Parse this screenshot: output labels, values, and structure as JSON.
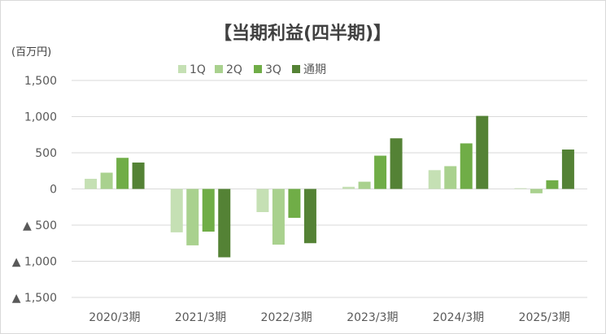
{
  "chart_data": {
    "type": "bar",
    "title": "【当期利益(四半期)】",
    "unit_label": "(百万円)",
    "categories": [
      "2020/3期",
      "2021/3期",
      "2022/3期",
      "2023/3期",
      "2024/3期",
      "2025/3期"
    ],
    "series": [
      {
        "name": "1Q",
        "color": "#c5e0b4",
        "values": [
          140,
          -600,
          -320,
          30,
          260,
          10
        ]
      },
      {
        "name": "2Q",
        "color": "#a9d18e",
        "values": [
          225,
          -780,
          -770,
          100,
          315,
          -60
        ]
      },
      {
        "name": "3Q",
        "color": "#70ad47",
        "values": [
          430,
          -590,
          -400,
          460,
          630,
          120
        ]
      },
      {
        "name": "通期",
        "color": "#548235",
        "values": [
          365,
          -945,
          -750,
          700,
          1010,
          545
        ]
      }
    ],
    "ylim": [
      -1500,
      1500
    ],
    "yticks": [
      1500,
      1000,
      500,
      0,
      -500,
      -1000,
      -1500
    ],
    "ytick_labels": [
      "1,500",
      "1,000",
      "500",
      "0",
      "▲ 500",
      "▲ 1,000",
      "▲ 1,500"
    ],
    "grid": true,
    "legend_position": "top"
  }
}
